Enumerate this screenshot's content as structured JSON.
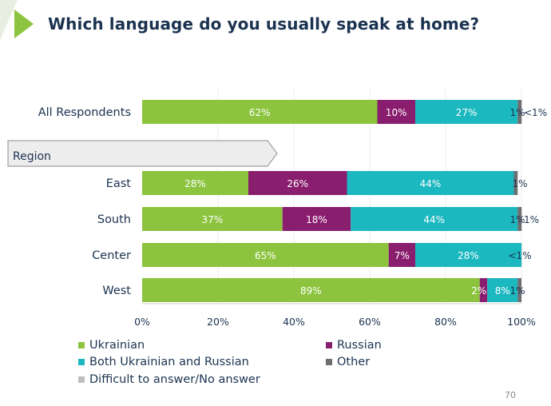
{
  "slide": {
    "title": "Which language do you usually speak at home?",
    "page_number": "70"
  },
  "colors": {
    "ukrainian": "#8dc43f",
    "russian": "#8a1e6e",
    "both": "#1cb8c0",
    "other": "#6d6e71",
    "difficult": "#bfbfbf",
    "accent": "#8dc43f"
  },
  "chart_data": {
    "type": "bar",
    "orientation": "horizontal",
    "stacked": true,
    "categories": [
      "All Respondents",
      "East",
      "South",
      "Center",
      "West"
    ],
    "group_label": "Region",
    "series": [
      {
        "name": "Ukrainian",
        "values": [
          62,
          28,
          37,
          65,
          89
        ],
        "labels": [
          "62%",
          "28%",
          "37%",
          "65%",
          "89%"
        ]
      },
      {
        "name": "Russian",
        "values": [
          10,
          26,
          18,
          7,
          2
        ],
        "labels": [
          "10%",
          "26%",
          "18%",
          "7%",
          "2%"
        ]
      },
      {
        "name": "Both Ukrainian and Russian",
        "values": [
          27,
          44,
          44,
          28,
          8
        ],
        "labels": [
          "27%",
          "44%",
          "44%",
          "28%",
          "8%"
        ]
      },
      {
        "name": "Other",
        "values": [
          1,
          1,
          1,
          0,
          1
        ],
        "labels": [
          "1%",
          "1%",
          "1%",
          "",
          "1%"
        ]
      },
      {
        "name": "Difficult to answer/No answer",
        "values": [
          0.5,
          0,
          1,
          0.5,
          0
        ],
        "labels": [
          "<1%",
          "",
          "1%",
          "<1%",
          ""
        ]
      }
    ],
    "xlim": [
      0,
      100
    ],
    "ticks": [
      "0%",
      "20%",
      "40%",
      "60%",
      "80%",
      "100%"
    ],
    "legend": "bottom"
  }
}
